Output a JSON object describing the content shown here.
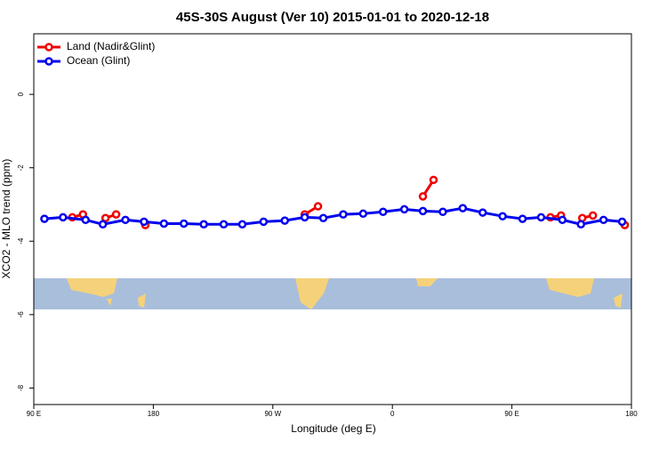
{
  "chart_data": {
    "type": "line",
    "title": "45S-30S August (Ver 10)   2015-01-01 to 2020-12-18",
    "x_label": "Longitude (deg E)",
    "y_label": "XCO2 - MLO trend (ppm)",
    "xlim": [
      90,
      540
    ],
    "ylim": [
      -8.45,
      1.65
    ],
    "xticks": [
      {
        "value": 90,
        "label": "90 E"
      },
      {
        "value": 180,
        "label": "180"
      },
      {
        "value": 270,
        "label": "90 W"
      },
      {
        "value": 360,
        "label": "0"
      },
      {
        "value": 450,
        "label": "90 E"
      },
      {
        "value": 540,
        "label": "180"
      }
    ],
    "yticks": [
      0,
      -2,
      -4,
      -6,
      -8
    ],
    "legend": "top-left",
    "series": [
      {
        "name": "Land (Nadir&Glint)",
        "color": "#ee0000",
        "x": [
          119,
          127,
          null,
          144,
          152,
          null,
          174,
          null,
          294,
          304,
          null,
          383,
          391,
          null,
          479,
          487,
          null,
          503,
          511,
          null,
          535
        ],
        "values": [
          -3.35,
          -3.27,
          null,
          -3.37,
          -3.27,
          null,
          -3.56,
          null,
          -3.27,
          -3.05,
          null,
          -2.78,
          -2.33,
          null,
          -3.35,
          -3.3,
          null,
          -3.37,
          -3.3,
          null,
          -3.56
        ]
      },
      {
        "name": "Ocean (Glint)",
        "color": "#0000ee",
        "x": [
          98,
          112,
          129,
          142,
          159,
          173,
          188,
          203,
          218,
          233,
          247,
          263,
          279,
          294,
          308,
          323,
          338,
          353,
          369,
          383,
          398,
          413,
          428,
          443,
          458,
          472,
          488,
          502,
          519,
          533
        ],
        "values": [
          -3.39,
          -3.35,
          -3.42,
          -3.54,
          -3.42,
          -3.47,
          -3.52,
          -3.52,
          -3.54,
          -3.54,
          -3.54,
          -3.47,
          -3.44,
          -3.35,
          -3.37,
          -3.27,
          -3.25,
          -3.2,
          -3.13,
          -3.18,
          -3.2,
          -3.1,
          -3.22,
          -3.32,
          -3.39,
          -3.35,
          -3.42,
          -3.54,
          -3.42,
          -3.47
        ]
      }
    ]
  }
}
